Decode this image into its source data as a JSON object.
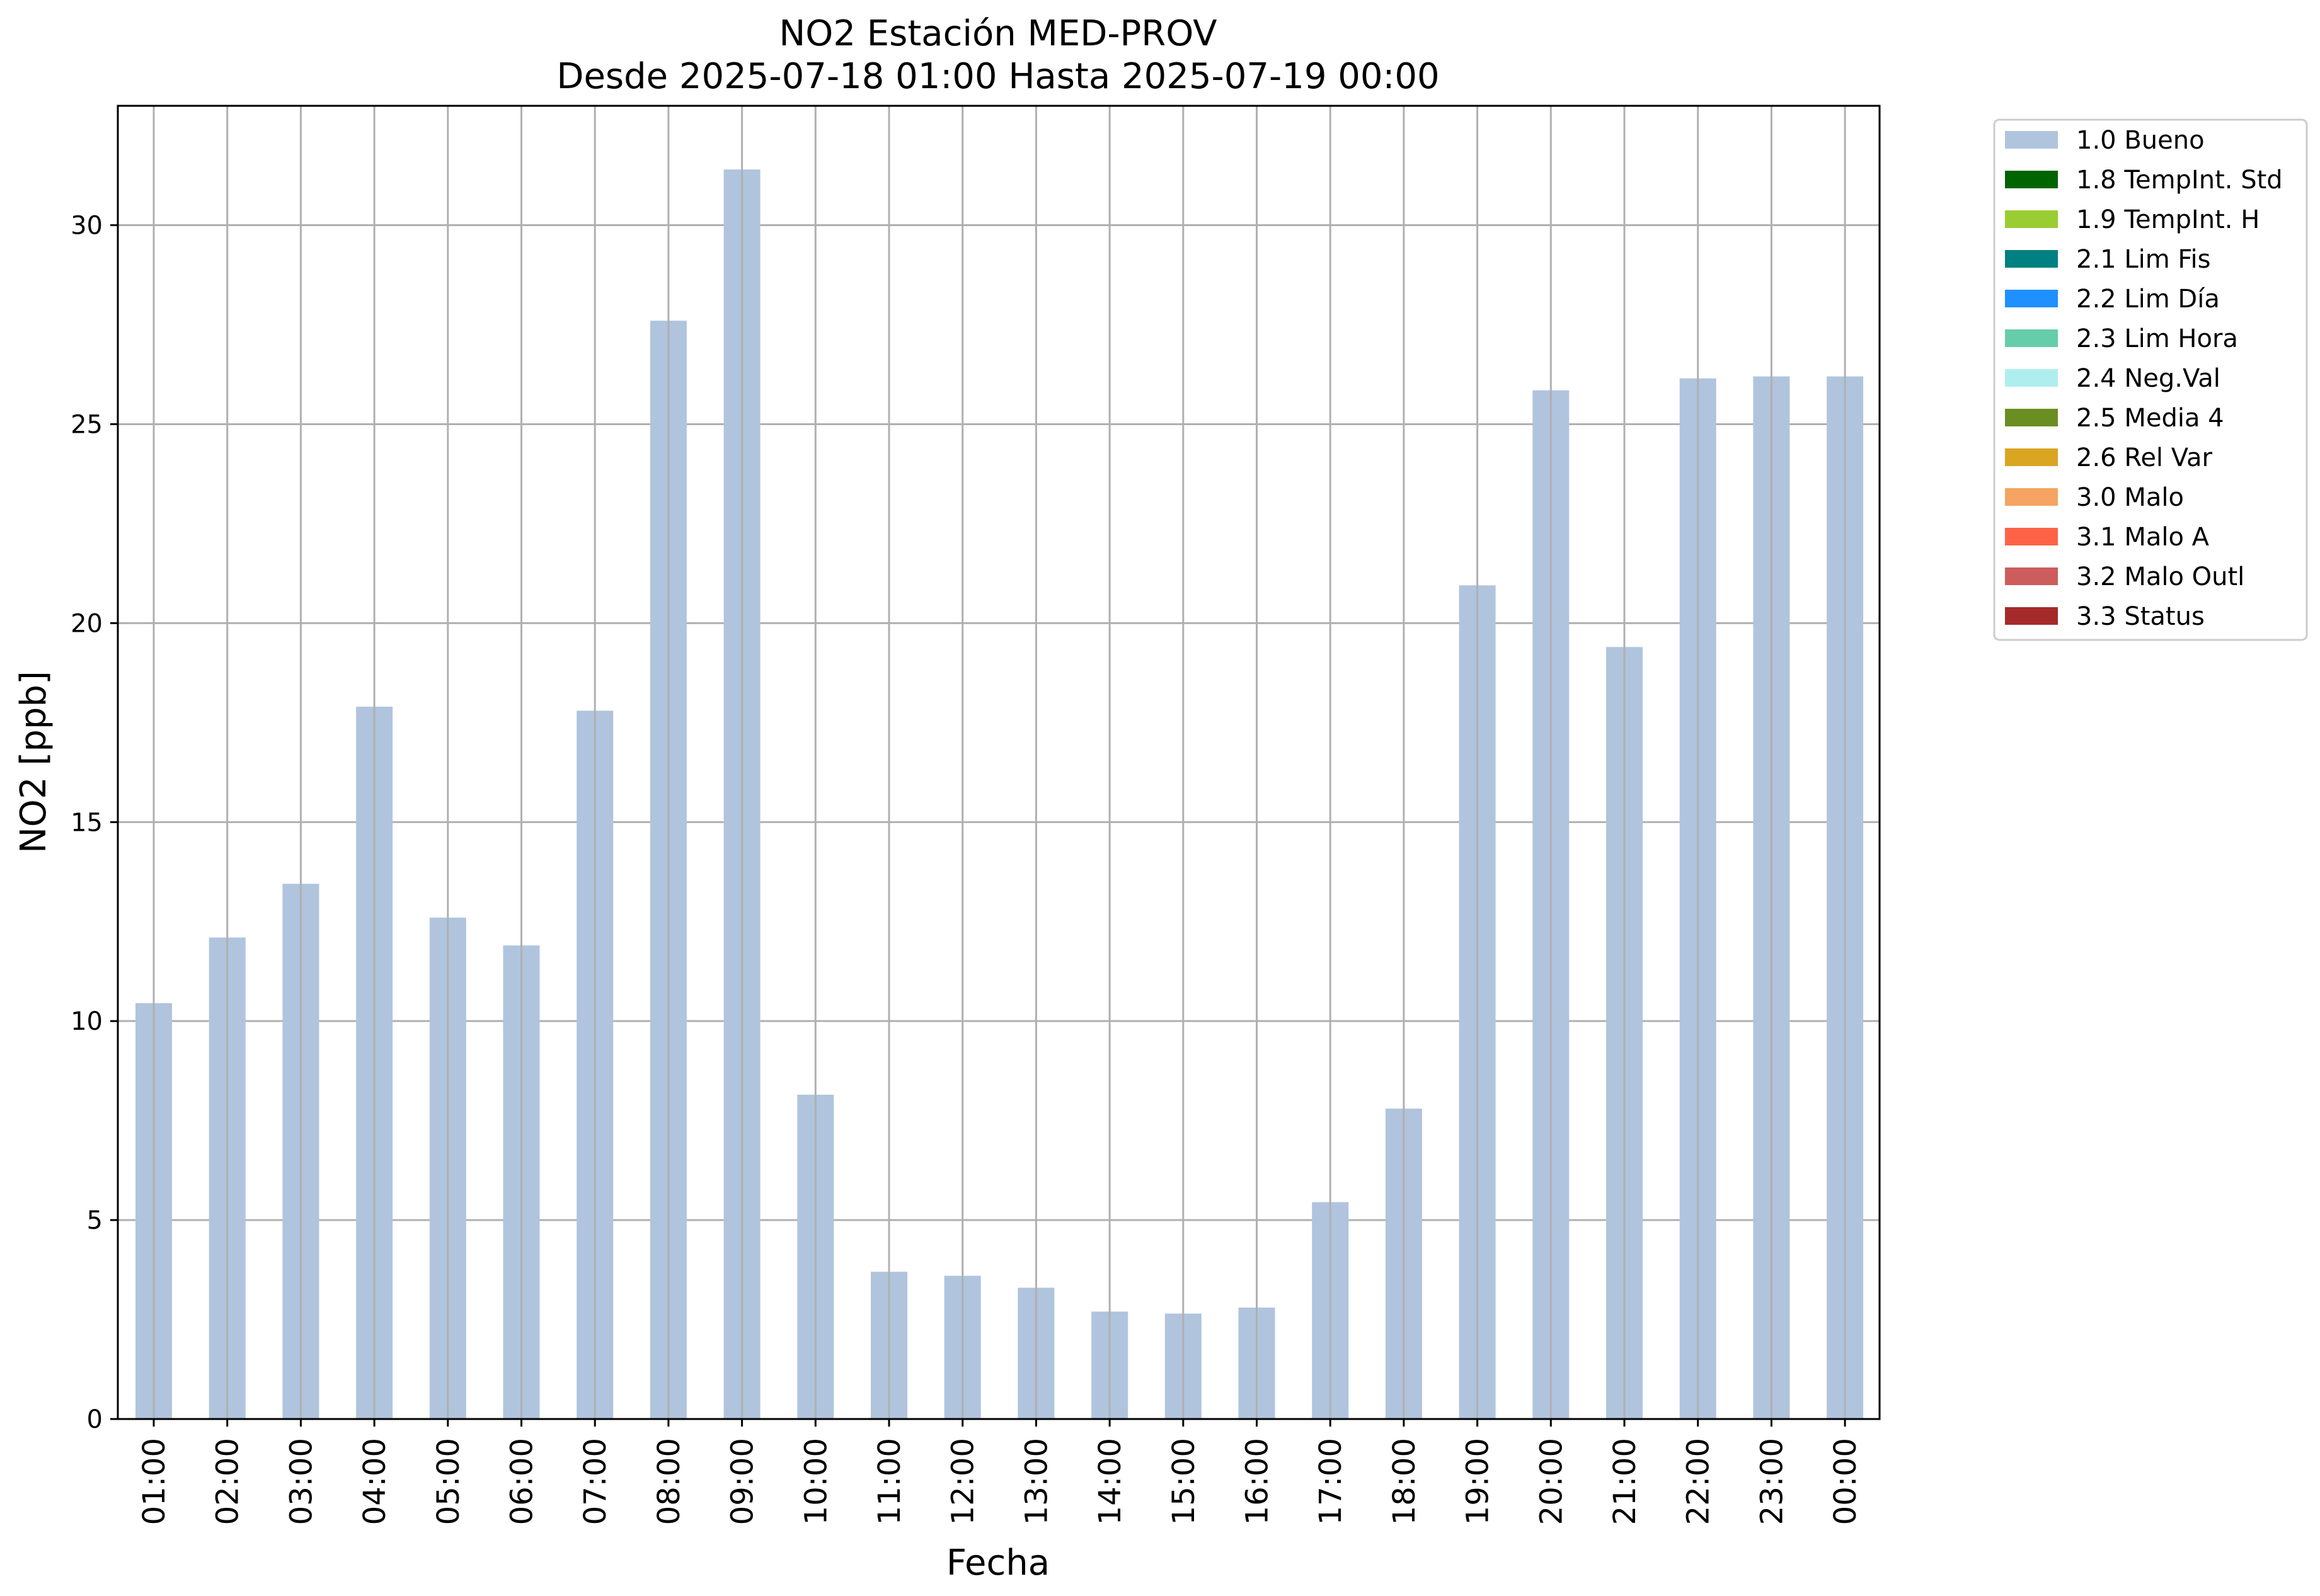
{
  "chart_data": {
    "type": "bar",
    "title_line1": "NO2 Estación MED-PROV",
    "title_line2": "Desde 2025-07-18 01:00 Hasta 2025-07-19 00:00",
    "xlabel": "Fecha",
    "ylabel": "NO2 [ppb]",
    "categories": [
      "01:00",
      "02:00",
      "03:00",
      "04:00",
      "05:00",
      "06:00",
      "07:00",
      "08:00",
      "09:00",
      "10:00",
      "11:00",
      "12:00",
      "13:00",
      "14:00",
      "15:00",
      "16:00",
      "17:00",
      "18:00",
      "19:00",
      "20:00",
      "21:00",
      "22:00",
      "23:00",
      "00:00"
    ],
    "values": [
      10.45,
      12.1,
      13.45,
      17.9,
      12.6,
      11.9,
      17.8,
      27.6,
      31.4,
      8.15,
      3.7,
      3.6,
      3.3,
      2.7,
      2.65,
      2.8,
      5.45,
      7.8,
      20.95,
      25.85,
      19.4,
      26.15,
      26.2,
      26.2
    ],
    "bar_color": "#b0c4de",
    "ylim": [
      0,
      33
    ],
    "yticks": [
      0,
      5,
      10,
      15,
      20,
      25,
      30
    ],
    "grid": true,
    "legend_position": "outside-right",
    "legend": [
      {
        "label": "1.0 Bueno",
        "color": "#b0c4de"
      },
      {
        "label": "1.8 TempInt. Std",
        "color": "#006400"
      },
      {
        "label": "1.9 TempInt. H",
        "color": "#9acd32"
      },
      {
        "label": "2.1 Lim Fis",
        "color": "#008080"
      },
      {
        "label": "2.2 Lim Día",
        "color": "#1e90ff"
      },
      {
        "label": "2.3 Lim Hora",
        "color": "#66cdaa"
      },
      {
        "label": "2.4 Neg.Val",
        "color": "#afeeee"
      },
      {
        "label": "2.5 Media 4",
        "color": "#6b8e23"
      },
      {
        "label": "2.6 Rel Var",
        "color": "#daa520"
      },
      {
        "label": "3.0 Malo",
        "color": "#f4a460"
      },
      {
        "label": "3.1 Malo A",
        "color": "#ff6347"
      },
      {
        "label": "3.2 Malo Outl",
        "color": "#cd5c5c"
      },
      {
        "label": "3.3 Status",
        "color": "#a52a2a"
      }
    ]
  }
}
